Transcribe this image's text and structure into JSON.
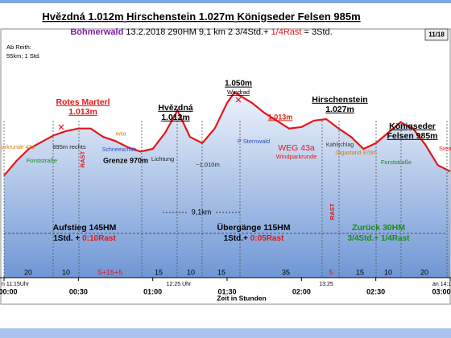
{
  "badge": "11/18",
  "origin": [
    "Ab Reith:",
    "55km; 1 Std."
  ],
  "chart_data": {
    "type": "area",
    "title": [
      "Hvězdná 1.012m",
      "Hirschenstein 1.027m",
      "Königseder Felsen 985m"
    ],
    "subtitle": [
      "Böhmerwald",
      "13.2.2018",
      "290HM",
      "9,1 km",
      "2 3/4Std.+",
      "1/4Rast",
      "= 3Std."
    ],
    "x": [
      0,
      5,
      10,
      20,
      25,
      30,
      35,
      40,
      45,
      50,
      55,
      60,
      65,
      70,
      75,
      80,
      85,
      90,
      93,
      100,
      105,
      110,
      115,
      120,
      125,
      130,
      135,
      140,
      145,
      150,
      155,
      160,
      165,
      170,
      175,
      180
    ],
    "values": [
      892,
      920,
      943,
      969,
      977,
      982,
      982,
      966,
      958,
      946,
      938,
      943,
      974,
      1017,
      966,
      954,
      982,
      1031,
      1051,
      1031,
      1012,
      997,
      982,
      985,
      997,
      1000,
      982,
      966,
      943,
      954,
      974,
      994,
      982,
      951,
      912,
      900
    ],
    "color": "#e01818",
    "xlim": [
      0,
      180
    ],
    "ylim": [
      700,
      1100
    ],
    "xticks": [
      {
        "value": 0,
        "label": "00:00"
      },
      {
        "value": 30,
        "label": "00:30"
      },
      {
        "value": 60,
        "label": "01:00"
      },
      {
        "value": 90,
        "label": "01:30"
      },
      {
        "value": 120,
        "label": "02:00"
      },
      {
        "value": 150,
        "label": "02:30"
      },
      {
        "value": 180,
        "label": "03:00"
      }
    ],
    "xlabel": "Zeit in Stunden",
    "annotations": [
      "Rotes Marterl",
      "1.013m",
      "Hvězdná",
      "1.012m",
      "1.050m",
      "Windrad",
      "Hirschenstein",
      "1.027m",
      "Königseder",
      "Felsen 985m",
      "1.013m",
      "WEG 43a",
      "Windparkrunde",
      "P Sternwald",
      "Kahlschlag",
      "Jagastand 970m",
      "Forststraße",
      "Forststraße",
      "arkrunde 43a",
      "995m rechts",
      "Wild",
      "Schneeschuh",
      "Grenze 970m",
      "Lichtung",
      "~1.010m",
      "RAST",
      "RAST",
      "Stern"
    ],
    "distance": "9,1km",
    "sections": [
      {
        "title": "Aufstieg 145HM",
        "time": "1Std. +",
        "rest": "0:10Rast"
      },
      {
        "title": "Übergänge 115HM",
        "time": "1Std.+",
        "rest": "0:05Rast"
      },
      {
        "title": "Zurück 30HM",
        "time": "3/4Std.+",
        "rest": "1/4Rast"
      }
    ],
    "segments": [
      20,
      10,
      "5+15+5",
      15,
      10,
      15,
      35,
      5,
      15,
      10,
      20
    ],
    "times": [
      "n 11:15Uhr",
      "12:25 Uhr",
      "13:25",
      "an 14:1"
    ]
  }
}
